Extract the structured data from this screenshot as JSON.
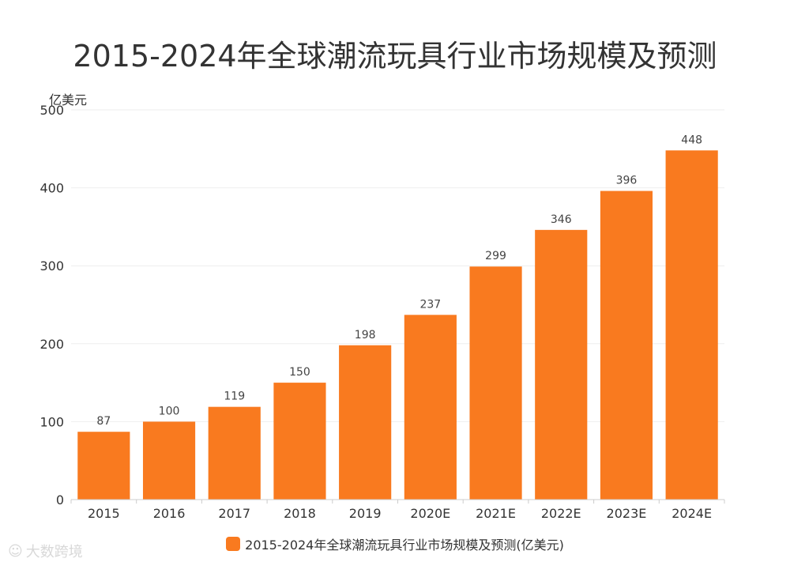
{
  "chart_data": {
    "type": "bar",
    "title": "2015-2024年全球潮流玩具行业市场规模及预测",
    "ylabel": "亿美元",
    "xlabel": "",
    "categories": [
      "2015",
      "2016",
      "2017",
      "2018",
      "2019",
      "2020E",
      "2021E",
      "2022E",
      "2023E",
      "2024E"
    ],
    "series": [
      {
        "name": "2015-2024年全球潮流玩具行业市场规模及预测(亿美元)",
        "values": [
          87,
          100,
          119,
          150,
          198,
          237,
          299,
          346,
          396,
          448
        ]
      }
    ],
    "ylim": [
      0,
      500
    ],
    "yticks": [
      0,
      100,
      200,
      300,
      400,
      500
    ],
    "grid": true,
    "legend_position": "bottom-center",
    "bar_color": "#f97a1f"
  },
  "watermark": {
    "text": "大数跨境",
    "icon": "brand-logo-icon"
  }
}
